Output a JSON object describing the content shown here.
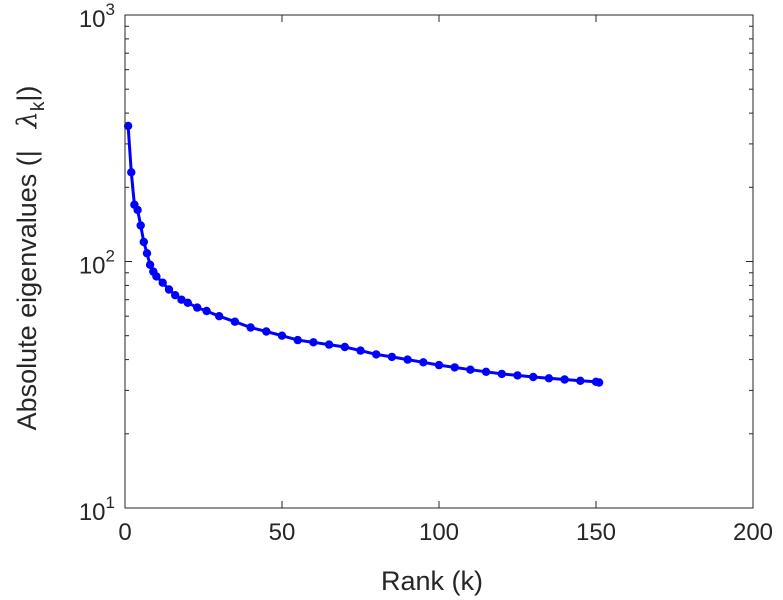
{
  "chart_data": {
    "type": "line",
    "title": "",
    "xlabel": "Rank (k)",
    "ylabel_parts": {
      "main": "Absolute eigenvalues (|",
      "symbol": "λ",
      "subscript": "k",
      "end": "|)"
    },
    "xlim": [
      0,
      200
    ],
    "ylim": [
      10,
      1000
    ],
    "yscale": "log",
    "x_ticks": [
      {
        "value": 0,
        "label": "0"
      },
      {
        "value": 50,
        "label": "50"
      },
      {
        "value": 100,
        "label": "100"
      },
      {
        "value": 150,
        "label": "150"
      },
      {
        "value": 200,
        "label": "200"
      }
    ],
    "y_ticks": [
      {
        "value": 10,
        "base": "10",
        "exp": "1"
      },
      {
        "value": 100,
        "base": "10",
        "exp": "2"
      },
      {
        "value": 1000,
        "base": "10",
        "exp": "3"
      }
    ],
    "grid": false,
    "series": [
      {
        "color": "#0000ff",
        "marker": "circle",
        "x": [
          1,
          2,
          3,
          4,
          5,
          6,
          7,
          8,
          9,
          10,
          12,
          14,
          16,
          18,
          20,
          23,
          26,
          30,
          35,
          40,
          45,
          50,
          55,
          60,
          65,
          70,
          75,
          80,
          85,
          90,
          95,
          100,
          105,
          110,
          115,
          120,
          125,
          130,
          135,
          140,
          145,
          150,
          151
        ],
        "y": [
          355,
          230,
          170,
          162,
          140,
          120,
          108,
          97,
          91,
          87,
          82,
          77,
          73,
          70,
          68,
          65,
          63,
          60,
          57,
          54,
          52,
          50,
          48,
          47,
          46,
          45,
          43.5,
          42,
          41,
          40,
          39,
          38,
          37.2,
          36.4,
          35.7,
          35,
          34.5,
          34,
          33.6,
          33.2,
          32.8,
          32.5,
          32.3
        ]
      }
    ]
  }
}
